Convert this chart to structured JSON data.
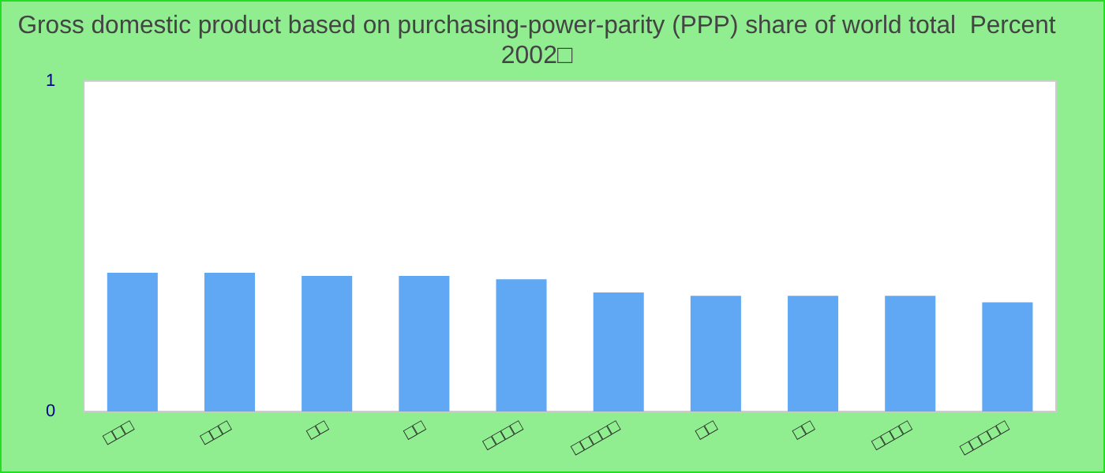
{
  "chart_data": {
    "type": "bar",
    "title": [
      "Gross domestic product based on purchasing-power-parity (PPP) share of world total  Percent",
      "2002□"
    ],
    "categories": [
      "□□□",
      "□□□",
      "□□",
      "□□",
      "□□□□",
      "□□□□□",
      "□□",
      "□□",
      "□□□□",
      "□□□□□"
    ],
    "values": [
      0.42,
      0.42,
      0.41,
      0.41,
      0.4,
      0.36,
      0.35,
      0.35,
      0.35,
      0.33
    ],
    "color": "#60a8f4",
    "ylim": [
      0,
      1
    ],
    "yticks": [
      0,
      1
    ],
    "grid": false,
    "legend": false
  }
}
